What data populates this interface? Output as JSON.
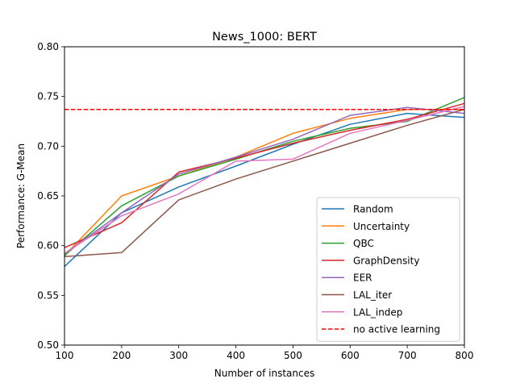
{
  "chart_data": {
    "type": "line",
    "title": "News_1000: BERT",
    "xlabel": "Number of instances",
    "ylabel": "Performance: G-Mean",
    "xlim": [
      100,
      800
    ],
    "ylim": [
      0.5,
      0.8
    ],
    "xticks": [
      100,
      200,
      300,
      400,
      500,
      600,
      700,
      800
    ],
    "xtick_labels": [
      "100",
      "200",
      "300",
      "400",
      "500",
      "600",
      "700",
      "800"
    ],
    "yticks": [
      0.5,
      0.55,
      0.6,
      0.65,
      0.7,
      0.75,
      0.8
    ],
    "ytick_labels": [
      "0.50",
      "0.55",
      "0.60",
      "0.65",
      "0.70",
      "0.75",
      "0.80"
    ],
    "grid": false,
    "legend_position": "lower-right",
    "x": [
      100,
      200,
      300,
      400,
      500,
      600,
      700,
      800
    ],
    "series": [
      {
        "name": "Random",
        "color": "#1f77b4",
        "values": [
          0.579,
          0.633,
          0.659,
          0.68,
          0.702,
          0.722,
          0.733,
          0.729
        ]
      },
      {
        "name": "Uncertainty",
        "color": "#ff7f0e",
        "values": [
          0.59,
          0.65,
          0.67,
          0.689,
          0.713,
          0.728,
          0.737,
          0.737
        ]
      },
      {
        "name": "QBC",
        "color": "#2ca02c",
        "values": [
          0.59,
          0.64,
          0.67,
          0.687,
          0.705,
          0.718,
          0.725,
          0.749
        ]
      },
      {
        "name": "GraphDensity",
        "color": "#d62728",
        "values": [
          0.598,
          0.623,
          0.674,
          0.688,
          0.703,
          0.716,
          0.727,
          0.743
        ]
      },
      {
        "name": "EER",
        "color": "#9467bd",
        "values": [
          0.592,
          0.633,
          0.672,
          0.689,
          0.707,
          0.731,
          0.739,
          0.733
        ]
      },
      {
        "name": "LAL_iter",
        "color": "#8c564b",
        "values": [
          0.589,
          0.593,
          0.646,
          0.667,
          0.685,
          0.703,
          0.721,
          0.737
        ]
      },
      {
        "name": "LAL_indep",
        "color": "#e377c2",
        "values": [
          0.592,
          0.63,
          0.652,
          0.685,
          0.687,
          0.713,
          0.726,
          0.74
        ]
      }
    ],
    "reference_lines": [
      {
        "name": "no active learning",
        "color": "#ff0000",
        "style": "dashed",
        "y": 0.737
      }
    ]
  }
}
